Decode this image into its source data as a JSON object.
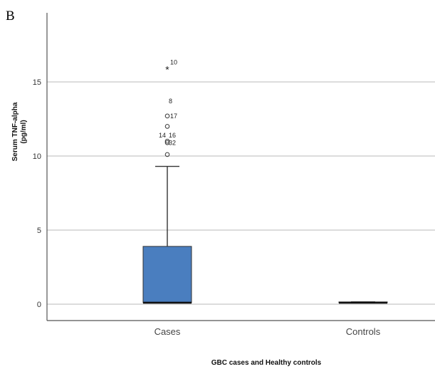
{
  "panel_label": "B",
  "chart_data": {
    "type": "box",
    "ylabel_line1": "Serum TNF-alpha",
    "ylabel_line2": "(pg/ml)",
    "xlabel": "GBC cases and Healthy controls",
    "ylim": [
      -0.8,
      19.5
    ],
    "yticks": [
      0,
      5,
      10,
      15
    ],
    "grid": true,
    "categories": [
      "Cases",
      "Controls"
    ],
    "boxes": [
      {
        "category": "Cases",
        "q1": 0.1,
        "median": 0.1,
        "q3": 3.9,
        "whisker_low": 0.1,
        "whisker_high": 9.3,
        "color": "#4a7ebf",
        "outliers": [
          {
            "y": 15.9,
            "label": "10",
            "marker": "*"
          },
          {
            "y": 13.7,
            "label": "8",
            "marker": ""
          },
          {
            "y": 12.7,
            "label": "17",
            "marker": "o"
          },
          {
            "y": 12.0,
            "label": "",
            "marker": "o"
          },
          {
            "y": 11.4,
            "label": "14",
            "marker": ""
          },
          {
            "y": 11.4,
            "label": "16",
            "marker": ""
          },
          {
            "y": 11.0,
            "label": "",
            "marker": "o"
          },
          {
            "y": 10.9,
            "label": "",
            "marker": "o"
          },
          {
            "y": 10.9,
            "label": "32",
            "marker": ""
          },
          {
            "y": 10.1,
            "label": "",
            "marker": "o"
          }
        ]
      },
      {
        "category": "Controls",
        "q1": 0.1,
        "median": 0.1,
        "q3": 0.15,
        "whisker_low": 0.1,
        "whisker_high": 0.15,
        "color": "#4a7ebf",
        "outliers": []
      }
    ]
  }
}
